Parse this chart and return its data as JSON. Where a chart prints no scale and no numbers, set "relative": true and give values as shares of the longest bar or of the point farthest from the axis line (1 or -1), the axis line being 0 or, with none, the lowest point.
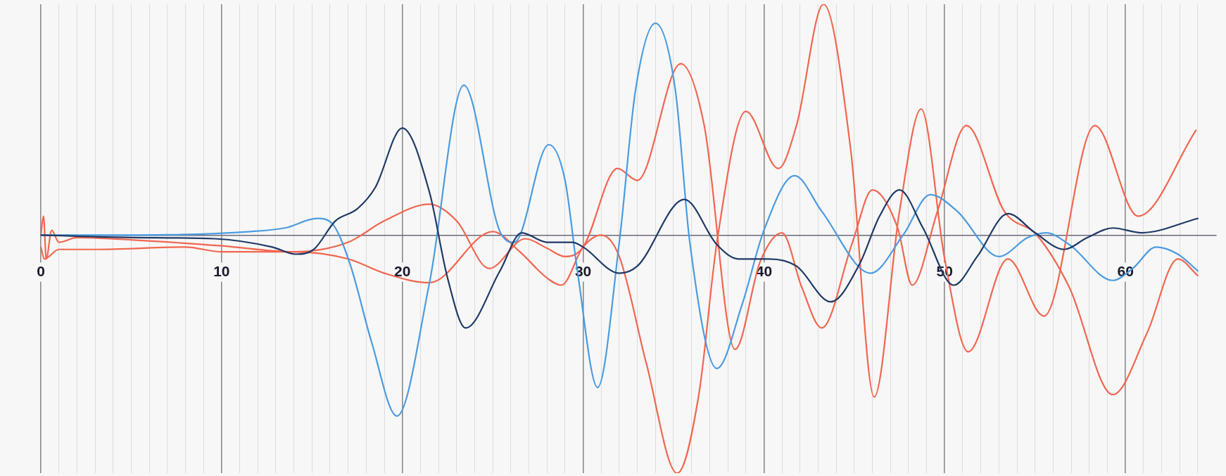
{
  "chart_data": {
    "type": "line",
    "relative": true,
    "grid": "x",
    "legend": false,
    "marker": "none",
    "line_style": "solid",
    "xlim": [
      0,
      65
    ],
    "xticks": [
      0,
      {
        "value": 1,
        "label": null
      },
      {
        "value": 2,
        "label": null
      },
      {
        "value": 3,
        "label": null
      },
      {
        "value": 4,
        "label": null
      },
      {
        "value": 5,
        "label": null
      },
      {
        "value": 6,
        "label": null
      },
      {
        "value": 7,
        "label": null
      },
      {
        "value": 8,
        "label": null
      },
      {
        "value": 9,
        "label": null
      },
      10,
      {
        "value": 11,
        "label": null
      },
      {
        "value": 12,
        "label": null
      },
      {
        "value": 13,
        "label": null
      },
      {
        "value": 14,
        "label": null
      },
      {
        "value": 15,
        "label": null
      },
      {
        "value": 16,
        "label": null
      },
      {
        "value": 17,
        "label": null
      },
      {
        "value": 18,
        "label": null
      },
      {
        "value": 19,
        "label": null
      },
      20,
      {
        "value": 21,
        "label": null
      },
      {
        "value": 22,
        "label": null
      },
      {
        "value": 23,
        "label": null
      },
      {
        "value": 24,
        "label": null
      },
      {
        "value": 25,
        "label": null
      },
      {
        "value": 26,
        "label": null
      },
      {
        "value": 27,
        "label": null
      },
      {
        "value": 28,
        "label": null
      },
      {
        "value": 29,
        "label": null
      },
      30,
      {
        "value": 31,
        "label": null
      },
      {
        "value": 32,
        "label": null
      },
      {
        "value": 33,
        "label": null
      },
      {
        "value": 34,
        "label": null
      },
      {
        "value": 35,
        "label": null
      },
      {
        "value": 36,
        "label": null
      },
      {
        "value": 37,
        "label": null
      },
      {
        "value": 38,
        "label": null
      },
      {
        "value": 39,
        "label": null
      },
      40,
      {
        "value": 41,
        "label": null
      },
      {
        "value": 42,
        "label": null
      },
      {
        "value": 43,
        "label": null
      },
      {
        "value": 44,
        "label": null
      },
      {
        "value": 45,
        "label": null
      },
      {
        "value": 46,
        "label": null
      },
      {
        "value": 47,
        "label": null
      },
      {
        "value": 48,
        "label": null
      },
      {
        "value": 49,
        "label": null
      },
      50,
      {
        "value": 51,
        "label": null
      },
      {
        "value": 52,
        "label": null
      },
      {
        "value": 53,
        "label": null
      },
      {
        "value": 54,
        "label": null
      },
      {
        "value": 55,
        "label": null
      },
      {
        "value": 56,
        "label": null
      },
      {
        "value": 57,
        "label": null
      },
      {
        "value": 58,
        "label": null
      },
      {
        "value": 59,
        "label": null
      },
      60,
      {
        "value": 61,
        "label": null
      },
      {
        "value": 62,
        "label": null
      },
      {
        "value": 63,
        "label": null
      },
      {
        "value": 64,
        "label": null
      }
    ],
    "series": [
      {
        "color": "#1f3a66",
        "x": [
          0,
          5,
          9.6,
          12.8,
          14.1,
          15.1,
          16.3,
          17.5,
          18.5,
          20,
          21.5,
          22.5,
          23.5,
          25.4,
          26.6,
          28,
          29.4,
          30,
          32,
          33,
          35.6,
          37.4,
          38.6,
          40.3,
          41.8,
          43.7,
          45.3,
          46.4,
          47.5,
          48.8,
          50.5,
          51.8,
          53.5,
          55,
          56.6,
          57.9,
          59.3,
          60.9,
          64
        ],
        "values": [
          0,
          -0.01,
          -0.015,
          -0.05,
          -0.08,
          -0.06,
          0.06,
          0.11,
          0.2,
          0.45,
          0.18,
          -0.18,
          -0.39,
          -0.15,
          0.01,
          -0.03,
          -0.03,
          -0.05,
          -0.16,
          -0.13,
          0.15,
          -0.04,
          -0.1,
          -0.1,
          -0.13,
          -0.28,
          -0.12,
          0.08,
          0.19,
          0.03,
          -0.21,
          -0.09,
          0.09,
          0.01,
          -0.06,
          -0.01,
          0.03,
          0.01,
          0.07
        ]
      },
      {
        "color": "#4b9be0",
        "x": [
          0,
          5,
          11.6,
          13.5,
          15.3,
          16.1,
          17.1,
          18.3,
          19.7,
          21.5,
          23.4,
          25.4,
          26.2,
          28.1,
          29,
          29.7,
          30.8,
          32,
          32.9,
          34,
          35.1,
          35.9,
          37.4,
          38.8,
          40,
          41.7,
          43.2,
          45.9,
          47.7,
          49.2,
          50.7,
          53,
          54.6,
          55.6,
          56.9,
          59.3,
          60.4,
          61.7,
          62.9,
          64
        ],
        "values": [
          0,
          0,
          0.015,
          0.03,
          0.07,
          0.05,
          -0.12,
          -0.45,
          -0.76,
          -0.2,
          0.63,
          0.015,
          -0.03,
          0.38,
          0.23,
          -0.16,
          -0.64,
          -0.03,
          0.61,
          0.89,
          0.61,
          -0.03,
          -0.56,
          -0.29,
          0.02,
          0.25,
          0.1,
          -0.16,
          0,
          0.17,
          0.1,
          -0.09,
          -0.01,
          0.01,
          -0.04,
          -0.19,
          -0.14,
          -0.05,
          -0.08,
          -0.15
        ]
      },
      {
        "color": "#f2664f",
        "x": [
          0,
          0.15,
          0.3,
          0.6,
          1,
          2,
          5,
          10,
          14,
          17,
          19,
          21.5,
          23,
          24.8,
          26.8,
          28,
          29,
          30,
          31.9,
          33,
          35.4,
          36.7,
          38.4,
          39.8,
          41,
          42.1,
          43.2,
          44.9,
          46,
          47.4,
          48.2,
          49.6,
          51.2,
          53.3,
          55.1,
          56.9,
          59.3,
          61.2,
          62.9,
          64
        ],
        "values": [
          0,
          0.08,
          -0.1,
          0.02,
          -0.03,
          -0.01,
          -0.02,
          -0.045,
          -0.07,
          -0.03,
          0.06,
          0.13,
          0.06,
          -0.14,
          -0.015,
          -0.055,
          -0.09,
          -0.05,
          0.28,
          0.23,
          0.72,
          0.46,
          -0.48,
          -0.11,
          0.01,
          -0.22,
          -0.39,
          -0.03,
          0.19,
          0.03,
          -0.21,
          0.1,
          0.46,
          0.1,
          0,
          -0.22,
          -0.67,
          -0.41,
          -0.1,
          -0.17
        ]
      },
      {
        "color": "#f2664f",
        "x": [
          0,
          0.2,
          1,
          3,
          8,
          10,
          14,
          17,
          19,
          21.5,
          25,
          26.5,
          28,
          28.8,
          30,
          31,
          32,
          33.5,
          35.2,
          36.4,
          37.4,
          39,
          40.8,
          41.8,
          43.3,
          44.8,
          46.1,
          47.5,
          48.7,
          50,
          51.3,
          53.5,
          55.5,
          58.3,
          60.7,
          63.9
        ],
        "values": [
          -0.05,
          -0.1,
          -0.06,
          -0.06,
          -0.05,
          -0.07,
          -0.07,
          -0.1,
          -0.16,
          -0.2,
          0.015,
          -0.07,
          -0.18,
          -0.21,
          -0.05,
          0,
          -0.09,
          -0.54,
          -1,
          -0.67,
          -0.03,
          0.52,
          0.28,
          0.46,
          0.97,
          0.36,
          -0.68,
          0.1,
          0.53,
          -0.1,
          -0.49,
          -0.1,
          -0.34,
          0.46,
          0.08,
          0.44
        ]
      }
    ]
  }
}
